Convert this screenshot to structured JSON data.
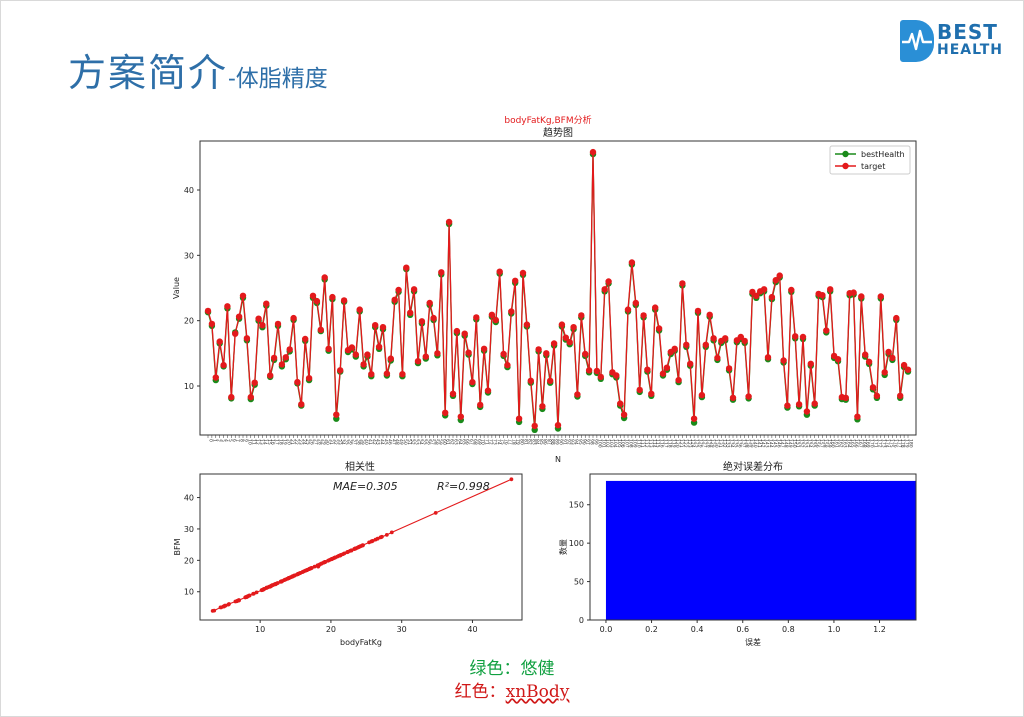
{
  "slide": {
    "title": "方案简介",
    "subtitle": "-体脂精度",
    "logo_line1": "BEST",
    "logo_line2": "HEALTH",
    "note_green": "绿色：悠健",
    "note_red_prefix": "红色：",
    "note_red_brand": "xnBody"
  },
  "colors": {
    "green": "#1a8a1a",
    "red": "#e31a1c",
    "blue": "#0000ff",
    "title_blue": "#2e6fa8"
  },
  "chart_data": [
    {
      "type": "line",
      "suptitle": "bodyFatKg,BFM分析",
      "title": "趋势图",
      "xlabel": "N",
      "ylabel": "Value",
      "ylim": [
        2.5,
        47.5
      ],
      "yticks": [
        10,
        20,
        30,
        40
      ],
      "x_count": 181,
      "legend_position": "top-right",
      "series": [
        {
          "name": "bestHealth",
          "color": "#1a8a1a",
          "values": [
            21.3,
            19.2,
            10.9,
            16.5,
            13.0,
            21.9,
            8.1,
            18.2,
            20.3,
            23.5,
            17.0,
            8.0,
            10.2,
            20.0,
            19.0,
            22.3,
            11.4,
            14.0,
            19.2,
            13.0,
            14.1,
            15.3,
            20.1,
            10.4,
            7.0,
            16.9,
            10.9,
            23.5,
            22.7,
            18.4,
            26.3,
            15.4,
            23.3,
            5.0,
            12.2,
            22.9,
            15.2,
            15.6,
            14.5,
            21.4,
            13.0,
            14.5,
            11.5,
            19.0,
            15.7,
            18.7,
            11.6,
            13.9,
            22.9,
            24.4,
            11.5,
            27.9,
            20.9,
            24.5,
            13.5,
            19.6,
            14.2,
            22.4,
            20.1,
            14.7,
            27.1,
            5.5,
            34.8,
            8.5,
            18.1,
            4.8,
            17.7,
            14.8,
            10.3,
            20.2,
            6.8,
            15.4,
            9.0,
            20.6,
            19.8,
            27.2,
            14.6,
            12.9,
            21.1,
            25.8,
            4.5,
            27.0,
            19.1,
            10.5,
            3.3,
            15.3,
            6.5,
            14.7,
            10.5,
            16.2,
            3.5,
            19.1,
            17.1,
            16.4,
            18.7,
            8.4,
            20.5,
            14.6,
            12.1,
            45.5,
            12.0,
            11.1,
            24.5,
            25.7,
            11.8,
            11.3,
            7.0,
            5.1,
            21.4,
            28.6,
            22.4,
            9.1,
            20.5,
            12.2,
            8.5,
            21.7,
            18.5,
            11.6,
            12.5,
            14.9,
            15.4,
            10.6,
            25.4,
            16.0,
            13.1,
            4.4,
            21.2,
            8.3,
            16.0,
            20.6,
            17.0,
            14.0,
            16.6,
            17.0,
            12.4,
            7.9,
            16.7,
            17.2,
            16.6,
            8.1,
            24.1,
            23.5,
            24.2,
            24.5,
            14.1,
            23.3,
            25.9,
            26.6,
            13.6,
            6.7,
            24.4,
            17.3,
            6.9,
            17.2,
            5.6,
            13.1,
            7.0,
            23.8,
            23.6,
            18.2,
            24.5,
            14.3,
            13.8,
            8.0,
            7.9,
            23.9,
            24.0,
            4.9,
            23.4,
            14.5,
            13.4,
            9.5,
            8.2,
            23.4,
            11.7,
            14.9,
            14.0,
            20.1,
            8.2,
            12.9,
            12.2
          ]
        },
        {
          "name": "target",
          "color": "#e31a1c",
          "values": [
            21.5,
            19.5,
            11.3,
            16.8,
            13.2,
            22.2,
            8.3,
            18.0,
            20.6,
            23.8,
            17.3,
            8.3,
            10.5,
            20.3,
            19.3,
            22.6,
            11.6,
            14.3,
            19.5,
            13.3,
            14.4,
            15.6,
            20.4,
            10.6,
            7.2,
            17.2,
            11.2,
            23.8,
            23.0,
            18.6,
            26.6,
            15.7,
            23.6,
            5.6,
            12.4,
            23.1,
            15.5,
            15.9,
            14.8,
            21.7,
            13.3,
            14.8,
            11.8,
            19.3,
            16.0,
            19.0,
            11.9,
            14.2,
            23.2,
            24.7,
            11.8,
            28.1,
            21.2,
            24.8,
            13.8,
            19.9,
            14.5,
            22.7,
            20.4,
            15.0,
            27.4,
            5.9,
            35.1,
            8.8,
            18.4,
            5.3,
            18.0,
            15.1,
            10.6,
            20.5,
            7.1,
            15.7,
            9.3,
            20.9,
            20.1,
            27.5,
            14.9,
            13.2,
            21.4,
            26.1,
            5.0,
            27.3,
            19.4,
            10.8,
            3.9,
            15.6,
            6.9,
            15.0,
            10.8,
            16.5,
            4.0,
            19.4,
            17.4,
            16.7,
            19.0,
            8.7,
            20.8,
            14.9,
            12.4,
            45.8,
            12.3,
            11.4,
            24.8,
            26.0,
            12.1,
            11.6,
            7.3,
            5.6,
            21.7,
            28.9,
            22.7,
            9.4,
            20.8,
            12.5,
            8.8,
            22.0,
            18.8,
            11.9,
            12.8,
            15.2,
            15.7,
            10.9,
            25.7,
            16.3,
            13.4,
            5.0,
            21.5,
            8.6,
            16.3,
            20.9,
            17.3,
            14.3,
            16.9,
            17.3,
            12.7,
            8.2,
            17.0,
            17.5,
            16.9,
            8.4,
            24.4,
            23.8,
            24.5,
            24.8,
            14.4,
            23.6,
            26.2,
            26.9,
            13.9,
            7.0,
            24.7,
            17.6,
            7.2,
            17.5,
            6.1,
            13.4,
            7.3,
            24.1,
            23.9,
            18.5,
            24.8,
            14.6,
            14.1,
            8.3,
            8.2,
            24.2,
            24.3,
            5.3,
            23.7,
            14.8,
            13.7,
            9.8,
            8.5,
            23.7,
            12.1,
            15.2,
            14.3,
            20.4,
            8.5,
            13.2,
            12.5
          ]
        }
      ]
    },
    {
      "type": "scatter",
      "title": "相关性",
      "xlabel": "bodyFatKg",
      "ylabel": "BFM",
      "xlim": [
        1.5,
        47
      ],
      "ylim": [
        1.0,
        47.5
      ],
      "xticks": [
        10,
        20,
        30,
        40
      ],
      "yticks": [
        10,
        20,
        30,
        40
      ],
      "annotation_mae": "MAE=0.305",
      "annotation_r2": "R²=0.998",
      "color": "#e31a1c"
    },
    {
      "type": "bar",
      "title": "绝对误差分布",
      "xlabel": "误差",
      "ylabel": "数量",
      "xlim": [
        -0.07,
        1.36
      ],
      "ylim": [
        0,
        190
      ],
      "xticks": [
        0.0,
        0.2,
        0.4,
        0.6,
        0.8,
        1.0,
        1.2
      ],
      "yticks": [
        0,
        50,
        100,
        150
      ],
      "bins": [
        {
          "x0": 0.0,
          "x1": 1.36,
          "count": 181
        }
      ],
      "color": "#0000ff"
    }
  ]
}
